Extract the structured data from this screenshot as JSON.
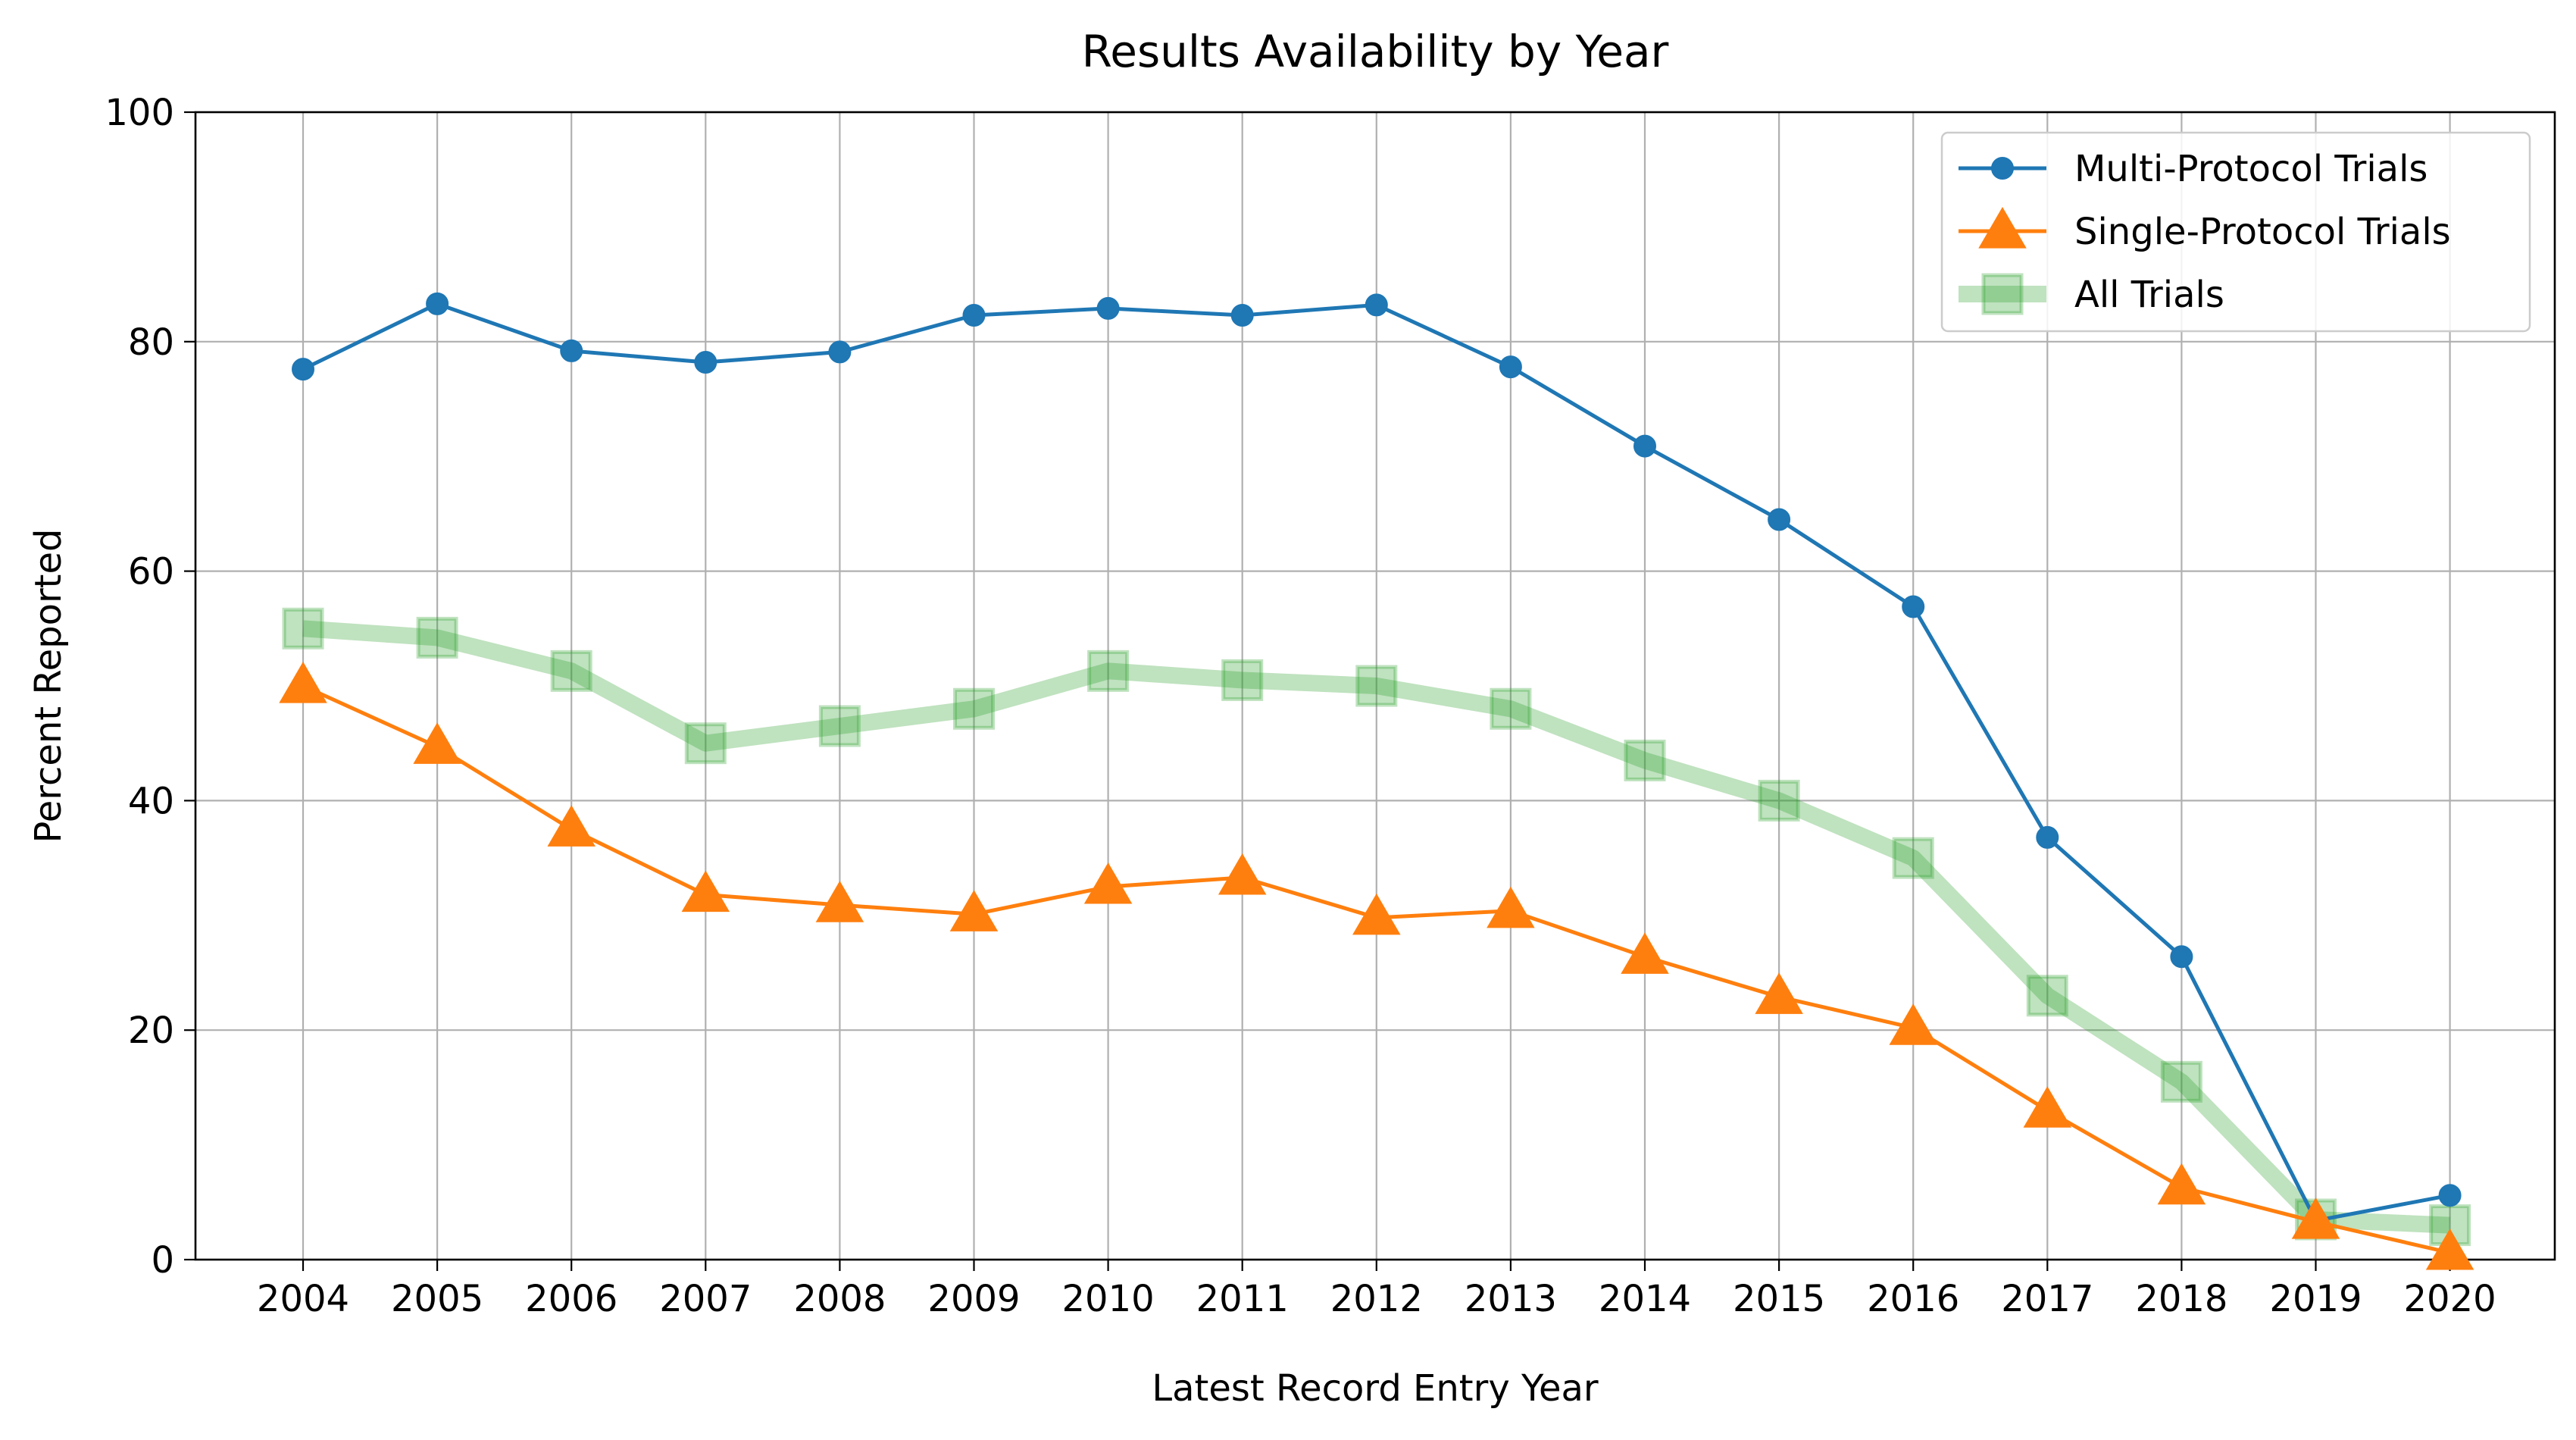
{
  "chart_data": {
    "type": "line",
    "title": "Results Availability by Year",
    "xlabel": "Latest Record Entry Year",
    "ylabel": "Percent Reported",
    "categories": [
      "2004",
      "2005",
      "2006",
      "2007",
      "2008",
      "2009",
      "2010",
      "2011",
      "2012",
      "2013",
      "2014",
      "2015",
      "2016",
      "2017",
      "2018",
      "2019",
      "2020"
    ],
    "yticks": [
      "0",
      "20",
      "40",
      "60",
      "80",
      "100"
    ],
    "ylim": [
      0,
      100
    ],
    "grid": true,
    "legend_position": "top-right",
    "series": [
      {
        "name": "Multi-Protocol Trials",
        "color": "#1f77b4",
        "marker": "circle",
        "values": [
          77.6,
          83.3,
          79.2,
          78.2,
          79.1,
          82.3,
          82.9,
          82.3,
          83.2,
          77.8,
          70.9,
          64.5,
          56.9,
          36.8,
          26.4,
          3.4,
          5.6
        ]
      },
      {
        "name": "Single-Protocol Trials",
        "color": "#ff7f0e",
        "marker": "triangle",
        "values": [
          50.0,
          44.7,
          37.5,
          31.8,
          30.9,
          30.1,
          32.5,
          33.3,
          29.8,
          30.4,
          26.4,
          22.9,
          20.2,
          13.0,
          6.3,
          3.3,
          0.6
        ]
      },
      {
        "name": "All Trials",
        "color": "#2ca02c",
        "marker": "square",
        "values": [
          55.0,
          54.2,
          51.3,
          45.0,
          46.5,
          48.0,
          51.3,
          50.5,
          50.0,
          48.0,
          43.5,
          40.0,
          35.0,
          23.0,
          15.5,
          3.5,
          3.0
        ]
      }
    ]
  }
}
